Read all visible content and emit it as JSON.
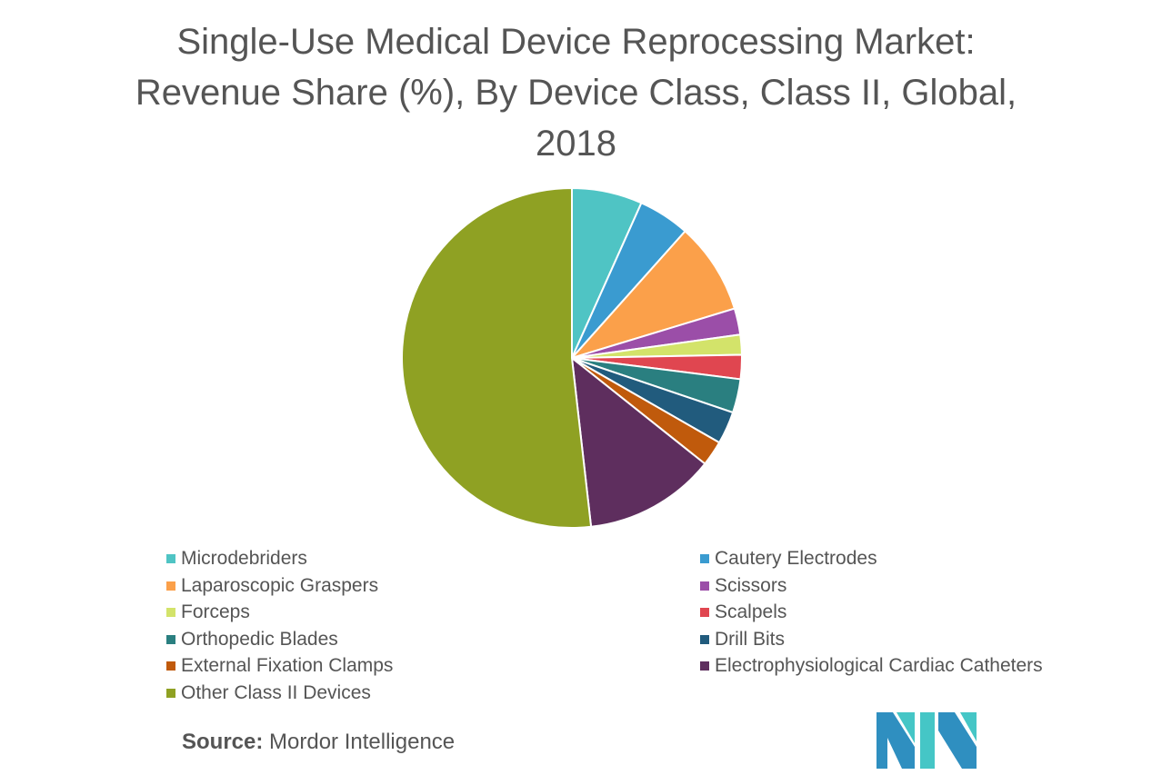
{
  "chart_data": {
    "type": "pie",
    "title": [
      "Single-Use Medical Device Reprocessing Market:",
      "Revenue Share (%), By Device Class, Class II, Global,",
      "2018"
    ],
    "start": "12 o'clock, clockwise",
    "legend_position": "bottom",
    "slices": [
      {
        "label": "Microdebriders",
        "value": 6.7,
        "color": "#4fc4c4"
      },
      {
        "label": "Cautery Electrodes",
        "value": 4.9,
        "color": "#3a9bd0"
      },
      {
        "label": "Laparoscopic Graspers",
        "value": 8.7,
        "color": "#fba04a"
      },
      {
        "label": "Scissors",
        "value": 2.5,
        "color": "#9b4ea8"
      },
      {
        "label": "Forceps",
        "value": 1.9,
        "color": "#d3e36a"
      },
      {
        "label": "Scalpels",
        "value": 2.3,
        "color": "#e04650"
      },
      {
        "label": "Orthopedic Blades",
        "value": 3.2,
        "color": "#2a7f80"
      },
      {
        "label": "Drill Bits",
        "value": 3.1,
        "color": "#215b7d"
      },
      {
        "label": "External Fixation Clamps",
        "value": 2.4,
        "color": "#c05a0c"
      },
      {
        "label": "Electrophysiological Cardiac Catheters",
        "value": 12.5,
        "color": "#5e2e5e"
      },
      {
        "label": "Other Class II Devices",
        "value": 51.8,
        "color": "#8fa123"
      }
    ]
  },
  "source": {
    "label": "Source:",
    "value": "Mordor Intelligence"
  },
  "logo": {
    "text": "MI"
  }
}
